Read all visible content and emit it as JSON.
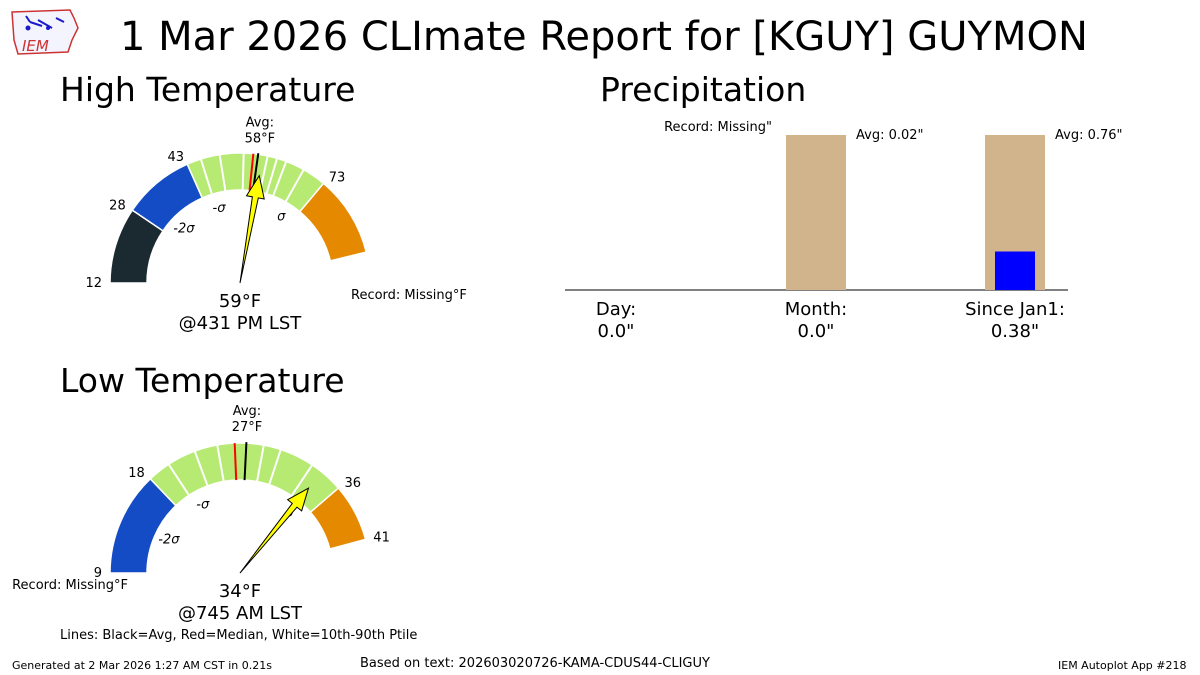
{
  "title": "1 Mar 2026 CLImate Report for [KGUY] GUYMON",
  "logo": {
    "text": "IEM",
    "icon": "iem-iowa-logo-icon"
  },
  "footer": {
    "generated": "Generated at 2 Mar 2026 1:27 AM CST in 0.21s",
    "based_on": "Based on text: 202603020726-KAMA-CDUS44-CLIGUY",
    "app": "IEM Autoplot App #218"
  },
  "lines_legend": "Lines: Black=Avg, Red=Median, White=10th-90th Ptile",
  "chart_data": [
    {
      "type": "gauge",
      "title": "High Temperature",
      "range": [
        12,
        73
      ],
      "ticks": [
        12,
        28,
        43,
        73
      ],
      "avg": 58,
      "median": 57,
      "avg_label": "Avg:",
      "avg_value_label": "58°F",
      "observed": 59,
      "observed_label": "59°F",
      "observed_time": "@431 PM LST",
      "record_label": "Record: Missing°F",
      "sigma_labels": [
        "-2σ",
        "-σ",
        "σ"
      ],
      "sigma_values": [
        33,
        47,
        69
      ],
      "percentiles": [
        46,
        50,
        55,
        60,
        62,
        64,
        68
      ],
      "bands": [
        {
          "from": 12,
          "to": 28,
          "color": "#1b2a30"
        },
        {
          "from": 28,
          "to": 43,
          "color": "#134cc4"
        },
        {
          "from": 43,
          "to": 73,
          "color": "#b6ea72"
        },
        {
          "from": 73,
          "to": 90,
          "color": "#e58a00"
        }
      ],
      "arrow_color": "#ffff00"
    },
    {
      "type": "gauge",
      "title": "Low Temperature",
      "range": [
        9,
        41
      ],
      "ticks": [
        9,
        18,
        36,
        41
      ],
      "avg": 27,
      "median": 26,
      "avg_label": "Avg:",
      "avg_value_label": "27°F",
      "observed": 34,
      "observed_label": "34°F",
      "observed_time": "@745 AM LST",
      "record_label": "Record: Missing°F",
      "sigma_labels": [
        "-2σ",
        "-σ",
        "σ"
      ],
      "sigma_values": [
        14,
        21,
        34
      ],
      "percentiles": [
        20,
        22.5,
        24.5,
        28.5,
        30,
        33
      ],
      "bands": [
        {
          "from": 0,
          "to": 9,
          "color": "#1b2a30"
        },
        {
          "from": 9,
          "to": 18,
          "color": "#134cc4"
        },
        {
          "from": 18,
          "to": 36,
          "color": "#b6ea72"
        },
        {
          "from": 36,
          "to": 41,
          "color": "#e58a00"
        }
      ],
      "arrow_color": "#ffff00"
    },
    {
      "type": "bar",
      "title": "Precipitation",
      "categories": [
        "Day:",
        "Month:",
        "Since Jan1:"
      ],
      "value_labels": [
        "0.0\"",
        "0.0\"",
        "0.38\""
      ],
      "values": [
        0.0,
        0.0,
        0.38
      ],
      "avg": [
        null,
        0.02,
        0.76
      ],
      "avg_labels": [
        "Record: Missing\"",
        "Avg: 0.02\"",
        "Avg: 0.76\""
      ],
      "observed_color": "#0000ff",
      "avg_color": "#d2b48c"
    }
  ]
}
